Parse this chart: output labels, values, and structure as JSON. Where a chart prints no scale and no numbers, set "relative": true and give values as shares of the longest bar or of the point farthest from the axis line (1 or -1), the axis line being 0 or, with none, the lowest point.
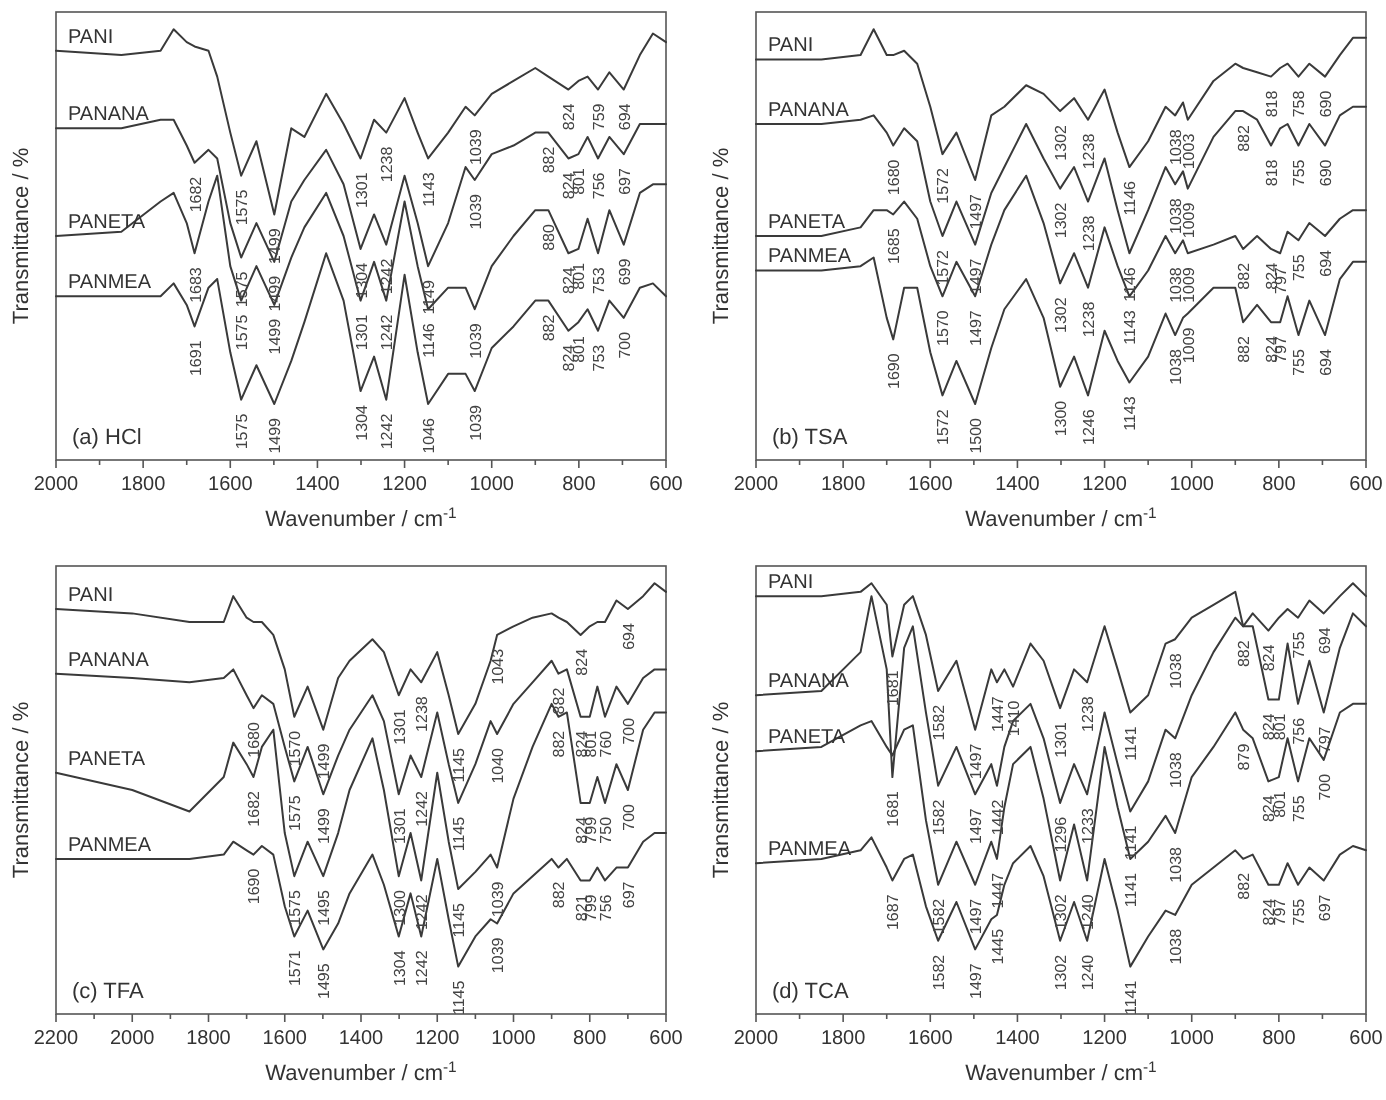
{
  "chart_data": [
    {
      "type": "line",
      "relative": true,
      "title": "(a) HCl",
      "xlabel": "Wavenumber / cm$^{-1}$",
      "ylabel": "Transmittance / %",
      "xlim": [
        2000,
        600
      ],
      "xticks": [
        2000,
        {
          "value": 1900,
          "label": null
        },
        1800,
        {
          "value": 1700,
          "label": null
        },
        1600,
        {
          "value": 1500,
          "label": null
        },
        1400,
        {
          "value": 1300,
          "label": null
        },
        1200,
        {
          "value": 1100,
          "label": null
        },
        1000,
        {
          "value": 900,
          "label": null
        },
        800,
        {
          "value": 700,
          "label": null
        },
        600
      ],
      "x": [
        2000,
        1850,
        1760,
        1730,
        1700,
        1682,
        1650,
        1630,
        1600,
        1575,
        1540,
        1499,
        1460,
        1430,
        1380,
        1340,
        1301,
        1270,
        1242,
        1200,
        1170,
        1146,
        1100,
        1060,
        1039,
        1000,
        950,
        900,
        870,
        824,
        801,
        780,
        756,
        730,
        697,
        660,
        630,
        600
      ],
      "series": [
        {
          "name": "PANI",
          "color": "#3a3a3a",
          "values": [
            0.95,
            0.94,
            0.95,
            1.0,
            0.97,
            0.96,
            0.95,
            0.89,
            0.76,
            0.66,
            0.74,
            0.57,
            0.77,
            0.75,
            0.85,
            0.78,
            0.7,
            0.79,
            0.76,
            0.84,
            0.76,
            0.7,
            0.76,
            0.82,
            0.8,
            0.85,
            0.88,
            0.91,
            0.89,
            0.86,
            0.88,
            0.89,
            0.86,
            0.9,
            0.86,
            0.94,
            0.99,
            0.97
          ]
        },
        {
          "name": "PANANA",
          "color": "#3a3a3a",
          "values": [
            0.77,
            0.77,
            0.79,
            0.79,
            0.73,
            0.69,
            0.72,
            0.7,
            0.55,
            0.47,
            0.55,
            0.46,
            0.6,
            0.65,
            0.72,
            0.64,
            0.49,
            0.57,
            0.5,
            0.66,
            0.55,
            0.45,
            0.55,
            0.68,
            0.65,
            0.71,
            0.73,
            0.76,
            0.76,
            0.7,
            0.71,
            0.75,
            0.7,
            0.75,
            0.71,
            0.78,
            0.78,
            0.78
          ]
        },
        {
          "name": "PANETA",
          "color": "#3a3a3a",
          "values": [
            0.52,
            0.53,
            0.6,
            0.62,
            0.55,
            0.48,
            0.6,
            0.66,
            0.45,
            0.37,
            0.45,
            0.36,
            0.47,
            0.54,
            0.62,
            0.52,
            0.37,
            0.46,
            0.37,
            0.6,
            0.45,
            0.35,
            0.4,
            0.4,
            0.35,
            0.45,
            0.52,
            0.58,
            0.58,
            0.48,
            0.49,
            0.56,
            0.48,
            0.58,
            0.5,
            0.62,
            0.64,
            0.64
          ]
        },
        {
          "name": "PANMEA",
          "color": "#3a3a3a",
          "values": [
            0.38,
            0.38,
            0.38,
            0.41,
            0.36,
            0.31,
            0.4,
            0.42,
            0.25,
            0.14,
            0.22,
            0.13,
            0.23,
            0.32,
            0.48,
            0.37,
            0.16,
            0.24,
            0.14,
            0.43,
            0.25,
            0.13,
            0.2,
            0.2,
            0.16,
            0.26,
            0.31,
            0.37,
            0.37,
            0.3,
            0.32,
            0.35,
            0.3,
            0.37,
            0.33,
            0.4,
            0.41,
            0.38
          ]
        }
      ],
      "annotations": [
        {
          "text": "1575",
          "x": 1575,
          "y": 0.66
        },
        {
          "text": "1499",
          "x": 1499,
          "y": 0.57
        },
        {
          "text": "1301",
          "x": 1301,
          "y": 0.7
        },
        {
          "text": "1238",
          "x": 1242,
          "y": 0.76
        },
        {
          "text": "1143",
          "x": 1146,
          "y": 0.7
        },
        {
          "text": "1039",
          "x": 1039,
          "y": 0.8
        },
        {
          "text": "824",
          "x": 824,
          "y": 0.86
        },
        {
          "text": "759",
          "x": 756,
          "y": 0.86
        },
        {
          "text": "694",
          "x": 697,
          "y": 0.86
        },
        {
          "text": "1682",
          "x": 1682,
          "y": 0.69
        },
        {
          "text": "1575",
          "x": 1575,
          "y": 0.47
        },
        {
          "text": "1499",
          "x": 1499,
          "y": 0.46
        },
        {
          "text": "1304",
          "x": 1301,
          "y": 0.49
        },
        {
          "text": "1242",
          "x": 1242,
          "y": 0.5
        },
        {
          "text": "1149",
          "x": 1146,
          "y": 0.45
        },
        {
          "text": "1039",
          "x": 1039,
          "y": 0.65
        },
        {
          "text": "882",
          "x": 870,
          "y": 0.76
        },
        {
          "text": "824",
          "x": 824,
          "y": 0.7
        },
        {
          "text": "801",
          "x": 801,
          "y": 0.71
        },
        {
          "text": "756",
          "x": 756,
          "y": 0.7
        },
        {
          "text": "697",
          "x": 697,
          "y": 0.71
        },
        {
          "text": "1683",
          "x": 1682,
          "y": 0.48
        },
        {
          "text": "1575",
          "x": 1575,
          "y": 0.37
        },
        {
          "text": "1499",
          "x": 1499,
          "y": 0.36
        },
        {
          "text": "1301",
          "x": 1301,
          "y": 0.37
        },
        {
          "text": "1242",
          "x": 1242,
          "y": 0.37
        },
        {
          "text": "1146",
          "x": 1146,
          "y": 0.35
        },
        {
          "text": "1039",
          "x": 1039,
          "y": 0.35
        },
        {
          "text": "880",
          "x": 870,
          "y": 0.58
        },
        {
          "text": "824",
          "x": 824,
          "y": 0.48
        },
        {
          "text": "801",
          "x": 801,
          "y": 0.49
        },
        {
          "text": "753",
          "x": 756,
          "y": 0.48
        },
        {
          "text": "699",
          "x": 697,
          "y": 0.5
        },
        {
          "text": "1691",
          "x": 1682,
          "y": 0.31
        },
        {
          "text": "882",
          "x": 870,
          "y": 0.37
        },
        {
          "text": "824",
          "x": 824,
          "y": 0.3
        },
        {
          "text": "801",
          "x": 801,
          "y": 0.32
        },
        {
          "text": "753",
          "x": 756,
          "y": 0.3
        },
        {
          "text": "700",
          "x": 697,
          "y": 0.33
        },
        {
          "text": "1575",
          "x": 1575,
          "y": 0.14
        },
        {
          "text": "1499",
          "x": 1499,
          "y": 0.13
        },
        {
          "text": "1304",
          "x": 1301,
          "y": 0.16
        },
        {
          "text": "1242",
          "x": 1242,
          "y": 0.14
        },
        {
          "text": "1046",
          "x": 1146,
          "y": 0.13
        },
        {
          "text": "1039",
          "x": 1039,
          "y": 0.16
        }
      ]
    },
    {
      "type": "line",
      "relative": true,
      "title": "(b) TSA",
      "xlabel": "Wavenumber / cm$^{-1}$",
      "ylabel": "Transmittance / %",
      "xlim": [
        2000,
        600
      ],
      "xticks": [
        2000,
        {
          "value": 1900,
          "label": null
        },
        1800,
        {
          "value": 1700,
          "label": null
        },
        1600,
        {
          "value": 1500,
          "label": null
        },
        1400,
        {
          "value": 1300,
          "label": null
        },
        1200,
        {
          "value": 1100,
          "label": null
        },
        1000,
        {
          "value": 900,
          "label": null
        },
        800,
        {
          "value": 700,
          "label": null
        },
        600
      ],
      "x": [
        2000,
        1850,
        1760,
        1730,
        1700,
        1685,
        1660,
        1630,
        1600,
        1572,
        1540,
        1497,
        1460,
        1430,
        1380,
        1340,
        1302,
        1270,
        1238,
        1200,
        1170,
        1143,
        1100,
        1060,
        1038,
        1020,
        1009,
        950,
        900,
        882,
        850,
        818,
        797,
        780,
        755,
        730,
        694,
        660,
        630,
        600
      ],
      "series": [
        {
          "name": "PANI",
          "color": "#3a3a3a",
          "values": [
            0.93,
            0.93,
            0.94,
            1.0,
            0.94,
            0.94,
            0.95,
            0.92,
            0.82,
            0.71,
            0.76,
            0.65,
            0.8,
            0.82,
            0.87,
            0.85,
            0.81,
            0.84,
            0.79,
            0.86,
            0.76,
            0.68,
            0.74,
            0.82,
            0.8,
            0.83,
            0.79,
            0.88,
            0.92,
            0.91,
            0.9,
            0.89,
            0.91,
            0.92,
            0.89,
            0.92,
            0.89,
            0.94,
            0.98,
            0.98
          ]
        },
        {
          "name": "PANANA",
          "color": "#3a3a3a",
          "values": [
            0.78,
            0.78,
            0.79,
            0.8,
            0.76,
            0.73,
            0.77,
            0.74,
            0.6,
            0.52,
            0.6,
            0.5,
            0.62,
            0.68,
            0.78,
            0.7,
            0.63,
            0.68,
            0.6,
            0.7,
            0.58,
            0.48,
            0.58,
            0.68,
            0.64,
            0.67,
            0.63,
            0.75,
            0.81,
            0.81,
            0.79,
            0.73,
            0.77,
            0.78,
            0.73,
            0.78,
            0.73,
            0.8,
            0.82,
            0.82
          ]
        },
        {
          "name": "PANETA",
          "color": "#3a3a3a",
          "values": [
            0.52,
            0.52,
            0.54,
            0.58,
            0.58,
            0.57,
            0.6,
            0.56,
            0.45,
            0.38,
            0.46,
            0.38,
            0.5,
            0.58,
            0.66,
            0.55,
            0.41,
            0.48,
            0.4,
            0.54,
            0.45,
            0.38,
            0.44,
            0.52,
            0.48,
            0.51,
            0.48,
            0.5,
            0.52,
            0.49,
            0.52,
            0.49,
            0.48,
            0.53,
            0.51,
            0.55,
            0.52,
            0.56,
            0.58,
            0.58
          ]
        },
        {
          "name": "PANMEA",
          "color": "#3a3a3a",
          "values": [
            0.44,
            0.44,
            0.45,
            0.47,
            0.33,
            0.28,
            0.4,
            0.4,
            0.25,
            0.15,
            0.23,
            0.13,
            0.26,
            0.35,
            0.42,
            0.33,
            0.17,
            0.24,
            0.15,
            0.3,
            0.23,
            0.18,
            0.24,
            0.34,
            0.29,
            0.33,
            0.34,
            0.4,
            0.4,
            0.32,
            0.36,
            0.32,
            0.32,
            0.38,
            0.29,
            0.37,
            0.29,
            0.42,
            0.46,
            0.46
          ]
        }
      ],
      "annotations": [
        {
          "text": "1572",
          "x": 1572,
          "y": 0.71
        },
        {
          "text": "1497",
          "x": 1497,
          "y": 0.65
        },
        {
          "text": "1302",
          "x": 1302,
          "y": 0.81
        },
        {
          "text": "1238",
          "x": 1238,
          "y": 0.79
        },
        {
          "text": "1146",
          "x": 1143,
          "y": 0.68
        },
        {
          "text": "1038",
          "x": 1038,
          "y": 0.8
        },
        {
          "text": "1003",
          "x": 1009,
          "y": 0.79
        },
        {
          "text": "818",
          "x": 818,
          "y": 0.89
        },
        {
          "text": "758",
          "x": 755,
          "y": 0.89
        },
        {
          "text": "690",
          "x": 694,
          "y": 0.89
        },
        {
          "text": "1680",
          "x": 1685,
          "y": 0.73
        },
        {
          "text": "1572",
          "x": 1572,
          "y": 0.52
        },
        {
          "text": "1497",
          "x": 1497,
          "y": 0.5
        },
        {
          "text": "1302",
          "x": 1302,
          "y": 0.63
        },
        {
          "text": "1238",
          "x": 1238,
          "y": 0.6
        },
        {
          "text": "1146",
          "x": 1143,
          "y": 0.48
        },
        {
          "text": "1038",
          "x": 1038,
          "y": 0.64
        },
        {
          "text": "1009",
          "x": 1009,
          "y": 0.63
        },
        {
          "text": "882",
          "x": 882,
          "y": 0.81
        },
        {
          "text": "818",
          "x": 818,
          "y": 0.73
        },
        {
          "text": "755",
          "x": 755,
          "y": 0.73
        },
        {
          "text": "690",
          "x": 694,
          "y": 0.73
        },
        {
          "text": "1685",
          "x": 1685,
          "y": 0.57
        },
        {
          "text": "1570",
          "x": 1572,
          "y": 0.38
        },
        {
          "text": "1497",
          "x": 1497,
          "y": 0.38
        },
        {
          "text": "1302",
          "x": 1302,
          "y": 0.41
        },
        {
          "text": "1238",
          "x": 1238,
          "y": 0.4
        },
        {
          "text": "1143",
          "x": 1143,
          "y": 0.38
        },
        {
          "text": "1038",
          "x": 1038,
          "y": 0.48
        },
        {
          "text": "1009",
          "x": 1009,
          "y": 0.48
        },
        {
          "text": "882",
          "x": 882,
          "y": 0.49
        },
        {
          "text": "824",
          "x": 818,
          "y": 0.49
        },
        {
          "text": "797",
          "x": 797,
          "y": 0.48
        },
        {
          "text": "755",
          "x": 755,
          "y": 0.51
        },
        {
          "text": "694",
          "x": 694,
          "y": 0.52
        },
        {
          "text": "1690",
          "x": 1685,
          "y": 0.28
        },
        {
          "text": "1038",
          "x": 1038,
          "y": 0.29
        },
        {
          "text": "1009",
          "x": 1009,
          "y": 0.34
        },
        {
          "text": "882",
          "x": 882,
          "y": 0.32
        },
        {
          "text": "824",
          "x": 818,
          "y": 0.32
        },
        {
          "text": "797",
          "x": 797,
          "y": 0.32
        },
        {
          "text": "755",
          "x": 755,
          "y": 0.29
        },
        {
          "text": "694",
          "x": 694,
          "y": 0.29
        },
        {
          "text": "1572",
          "x": 1572,
          "y": 0.15
        },
        {
          "text": "1500",
          "x": 1497,
          "y": 0.13
        },
        {
          "text": "1300",
          "x": 1302,
          "y": 0.17
        },
        {
          "text": "1246",
          "x": 1238,
          "y": 0.15
        },
        {
          "text": "1143",
          "x": 1143,
          "y": 0.18
        }
      ]
    },
    {
      "type": "line",
      "relative": true,
      "title": "(c) TFA",
      "xlabel": "Wavenumber / cm$^{-1}$",
      "ylabel": "Transmittance / %",
      "xlim": [
        2200,
        600
      ],
      "xticks": [
        2200,
        {
          "value": 2100,
          "label": null
        },
        2000,
        {
          "value": 1900,
          "label": null
        },
        1800,
        {
          "value": 1700,
          "label": null
        },
        1600,
        {
          "value": 1500,
          "label": null
        },
        1400,
        {
          "value": 1300,
          "label": null
        },
        1200,
        {
          "value": 1100,
          "label": null
        },
        1000,
        {
          "value": 900,
          "label": null
        },
        800,
        {
          "value": 700,
          "label": null
        },
        600
      ],
      "x": [
        2200,
        2000,
        1850,
        1760,
        1735,
        1700,
        1682,
        1660,
        1630,
        1600,
        1575,
        1540,
        1499,
        1460,
        1430,
        1370,
        1340,
        1301,
        1270,
        1242,
        1200,
        1170,
        1145,
        1100,
        1060,
        1043,
        1000,
        950,
        900,
        882,
        860,
        824,
        800,
        780,
        760,
        730,
        700,
        660,
        630,
        600
      ],
      "series": [
        {
          "name": "PANI",
          "color": "#3a3a3a",
          "values": [
            0.94,
            0.93,
            0.91,
            0.91,
            0.97,
            0.92,
            0.91,
            0.91,
            0.88,
            0.8,
            0.69,
            0.76,
            0.66,
            0.78,
            0.82,
            0.87,
            0.84,
            0.74,
            0.8,
            0.77,
            0.84,
            0.74,
            0.65,
            0.72,
            0.82,
            0.88,
            0.9,
            0.92,
            0.93,
            0.92,
            0.91,
            0.88,
            0.9,
            0.91,
            0.91,
            0.96,
            0.94,
            0.97,
            1.0,
            0.98
          ]
        },
        {
          "name": "PANANA",
          "color": "#3a3a3a",
          "values": [
            0.79,
            0.78,
            0.77,
            0.78,
            0.8,
            0.74,
            0.71,
            0.74,
            0.72,
            0.62,
            0.54,
            0.62,
            0.51,
            0.6,
            0.66,
            0.74,
            0.68,
            0.51,
            0.6,
            0.55,
            0.7,
            0.58,
            0.49,
            0.58,
            0.68,
            0.65,
            0.72,
            0.77,
            0.82,
            0.79,
            0.8,
            0.69,
            0.69,
            0.76,
            0.69,
            0.76,
            0.72,
            0.78,
            0.8,
            0.8
          ]
        },
        {
          "name": "PANETA",
          "color": "#3a3a3a",
          "values": [
            0.56,
            0.52,
            0.47,
            0.55,
            0.63,
            0.58,
            0.55,
            0.62,
            0.66,
            0.42,
            0.32,
            0.4,
            0.32,
            0.42,
            0.52,
            0.64,
            0.52,
            0.32,
            0.42,
            0.31,
            0.56,
            0.4,
            0.29,
            0.33,
            0.37,
            0.34,
            0.5,
            0.62,
            0.72,
            0.69,
            0.7,
            0.49,
            0.49,
            0.55,
            0.49,
            0.58,
            0.52,
            0.66,
            0.7,
            0.7
          ]
        },
        {
          "name": "PANMEA",
          "color": "#3a3a3a",
          "values": [
            0.36,
            0.36,
            0.36,
            0.37,
            0.4,
            0.38,
            0.37,
            0.39,
            0.37,
            0.25,
            0.18,
            0.24,
            0.15,
            0.21,
            0.28,
            0.37,
            0.3,
            0.18,
            0.28,
            0.18,
            0.36,
            0.22,
            0.11,
            0.18,
            0.22,
            0.21,
            0.28,
            0.32,
            0.36,
            0.34,
            0.36,
            0.31,
            0.31,
            0.34,
            0.31,
            0.34,
            0.34,
            0.4,
            0.42,
            0.42
          ]
        }
      ],
      "annotations": [
        {
          "text": "1570",
          "x": 1575,
          "y": 0.69
        },
        {
          "text": "1499",
          "x": 1499,
          "y": 0.66
        },
        {
          "text": "1301",
          "x": 1301,
          "y": 0.74
        },
        {
          "text": "1238",
          "x": 1242,
          "y": 0.77
        },
        {
          "text": "1145",
          "x": 1145,
          "y": 0.65
        },
        {
          "text": "1043",
          "x": 1043,
          "y": 0.88
        },
        {
          "text": "824",
          "x": 824,
          "y": 0.88
        },
        {
          "text": "694",
          "x": 700,
          "y": 0.94
        },
        {
          "text": "1680",
          "x": 1682,
          "y": 0.71
        },
        {
          "text": "1575",
          "x": 1575,
          "y": 0.54
        },
        {
          "text": "1499",
          "x": 1499,
          "y": 0.51
        },
        {
          "text": "1301",
          "x": 1301,
          "y": 0.51
        },
        {
          "text": "1242",
          "x": 1242,
          "y": 0.55
        },
        {
          "text": "1145",
          "x": 1145,
          "y": 0.49
        },
        {
          "text": "1040",
          "x": 1043,
          "y": 0.65
        },
        {
          "text": "882",
          "x": 882,
          "y": 0.79
        },
        {
          "text": "824",
          "x": 824,
          "y": 0.69
        },
        {
          "text": "801",
          "x": 800,
          "y": 0.69
        },
        {
          "text": "760",
          "x": 760,
          "y": 0.69
        },
        {
          "text": "700",
          "x": 700,
          "y": 0.72
        },
        {
          "text": "1682",
          "x": 1682,
          "y": 0.55
        },
        {
          "text": "1575",
          "x": 1575,
          "y": 0.32
        },
        {
          "text": "1495",
          "x": 1499,
          "y": 0.32
        },
        {
          "text": "1300",
          "x": 1301,
          "y": 0.32
        },
        {
          "text": "1242",
          "x": 1242,
          "y": 0.31
        },
        {
          "text": "1145",
          "x": 1145,
          "y": 0.29
        },
        {
          "text": "1039",
          "x": 1043,
          "y": 0.34
        },
        {
          "text": "882",
          "x": 882,
          "y": 0.69
        },
        {
          "text": "824",
          "x": 824,
          "y": 0.49
        },
        {
          "text": "799",
          "x": 800,
          "y": 0.49
        },
        {
          "text": "750",
          "x": 760,
          "y": 0.49
        },
        {
          "text": "700",
          "x": 700,
          "y": 0.52
        },
        {
          "text": "1690",
          "x": 1682,
          "y": 0.37
        },
        {
          "text": "882",
          "x": 882,
          "y": 0.34
        },
        {
          "text": "821",
          "x": 824,
          "y": 0.31
        },
        {
          "text": "799",
          "x": 800,
          "y": 0.31
        },
        {
          "text": "756",
          "x": 760,
          "y": 0.31
        },
        {
          "text": "697",
          "x": 700,
          "y": 0.34
        },
        {
          "text": "1571",
          "x": 1575,
          "y": 0.18
        },
        {
          "text": "1495",
          "x": 1499,
          "y": 0.15
        },
        {
          "text": "1304",
          "x": 1301,
          "y": 0.18
        },
        {
          "text": "1242",
          "x": 1242,
          "y": 0.18
        },
        {
          "text": "1145",
          "x": 1145,
          "y": 0.11
        },
        {
          "text": "1039",
          "x": 1043,
          "y": 0.21
        }
      ]
    },
    {
      "type": "line",
      "relative": true,
      "title": "(d) TCA",
      "xlabel": "Wavenumber / cm$^{-1}$",
      "ylabel": "Transmittance / %",
      "xlim": [
        2000,
        600
      ],
      "xticks": [
        2000,
        {
          "value": 1900,
          "label": null
        },
        1800,
        {
          "value": 1700,
          "label": null
        },
        1600,
        {
          "value": 1500,
          "label": null
        },
        1400,
        {
          "value": 1300,
          "label": null
        },
        1200,
        {
          "value": 1100,
          "label": null
        },
        1000,
        {
          "value": 900,
          "label": null
        },
        800,
        {
          "value": 700,
          "label": null
        },
        600
      ],
      "x": [
        2000,
        1850,
        1760,
        1735,
        1700,
        1687,
        1660,
        1640,
        1610,
        1582,
        1540,
        1497,
        1460,
        1447,
        1430,
        1410,
        1370,
        1340,
        1302,
        1270,
        1240,
        1200,
        1170,
        1141,
        1100,
        1060,
        1038,
        1000,
        950,
        900,
        882,
        860,
        824,
        800,
        780,
        756,
        730,
        697,
        660,
        630,
        600
      ],
      "series": [
        {
          "name": "PANI",
          "color": "#3a3a3a",
          "values": [
            0.97,
            0.97,
            0.98,
            1.0,
            0.95,
            0.83,
            0.95,
            0.97,
            0.88,
            0.75,
            0.82,
            0.66,
            0.8,
            0.77,
            0.8,
            0.76,
            0.86,
            0.82,
            0.71,
            0.8,
            0.77,
            0.9,
            0.8,
            0.7,
            0.74,
            0.86,
            0.87,
            0.92,
            0.95,
            0.98,
            0.9,
            0.93,
            0.89,
            0.92,
            0.94,
            0.92,
            0.96,
            0.93,
            0.97,
            1.0,
            0.97
          ]
        },
        {
          "name": "PANANA",
          "color": "#3a3a3a",
          "values": [
            0.74,
            0.75,
            0.84,
            0.97,
            0.8,
            0.55,
            0.85,
            0.9,
            0.7,
            0.53,
            0.62,
            0.51,
            0.58,
            0.53,
            0.62,
            0.68,
            0.72,
            0.64,
            0.49,
            0.58,
            0.51,
            0.7,
            0.58,
            0.47,
            0.54,
            0.66,
            0.64,
            0.74,
            0.84,
            0.92,
            0.9,
            0.9,
            0.73,
            0.73,
            0.86,
            0.72,
            0.82,
            0.7,
            0.85,
            0.93,
            0.9
          ]
        },
        {
          "name": "PANETA",
          "color": "#3a3a3a",
          "values": [
            0.61,
            0.62,
            0.67,
            0.68,
            0.62,
            0.6,
            0.66,
            0.67,
            0.45,
            0.3,
            0.4,
            0.3,
            0.4,
            0.36,
            0.48,
            0.58,
            0.62,
            0.5,
            0.31,
            0.44,
            0.31,
            0.62,
            0.48,
            0.36,
            0.4,
            0.46,
            0.42,
            0.55,
            0.62,
            0.7,
            0.66,
            0.64,
            0.54,
            0.55,
            0.64,
            0.54,
            0.64,
            0.59,
            0.7,
            0.72,
            0.72
          ]
        },
        {
          "name": "PANMEA",
          "color": "#3a3a3a",
          "values": [
            0.35,
            0.36,
            0.38,
            0.41,
            0.34,
            0.31,
            0.36,
            0.37,
            0.25,
            0.17,
            0.26,
            0.15,
            0.22,
            0.23,
            0.3,
            0.35,
            0.39,
            0.32,
            0.17,
            0.26,
            0.17,
            0.36,
            0.24,
            0.11,
            0.18,
            0.24,
            0.23,
            0.3,
            0.34,
            0.38,
            0.36,
            0.37,
            0.3,
            0.3,
            0.35,
            0.3,
            0.34,
            0.31,
            0.37,
            0.39,
            0.38
          ]
        }
      ],
      "annotations": [
        {
          "text": "1681",
          "x": 1687,
          "y": 0.83
        },
        {
          "text": "1582",
          "x": 1582,
          "y": 0.75
        },
        {
          "text": "1497",
          "x": 1497,
          "y": 0.66
        },
        {
          "text": "1447",
          "x": 1447,
          "y": 0.77
        },
        {
          "text": "1410",
          "x": 1410,
          "y": 0.76
        },
        {
          "text": "1301",
          "x": 1302,
          "y": 0.71
        },
        {
          "text": "1238",
          "x": 1240,
          "y": 0.77
        },
        {
          "text": "1141",
          "x": 1141,
          "y": 0.7
        },
        {
          "text": "1038",
          "x": 1038,
          "y": 0.87
        },
        {
          "text": "882",
          "x": 882,
          "y": 0.9
        },
        {
          "text": "824",
          "x": 824,
          "y": 0.89
        },
        {
          "text": "755",
          "x": 756,
          "y": 0.92
        },
        {
          "text": "694",
          "x": 697,
          "y": 0.93
        },
        {
          "text": "824",
          "x": 824,
          "y": 0.73
        },
        {
          "text": "801",
          "x": 800,
          "y": 0.73
        },
        {
          "text": "756",
          "x": 756,
          "y": 0.72
        },
        {
          "text": "797",
          "x": 697,
          "y": 0.7
        },
        {
          "text": "1681",
          "x": 1687,
          "y": 0.55
        },
        {
          "text": "1582",
          "x": 1582,
          "y": 0.53
        },
        {
          "text": "1497",
          "x": 1497,
          "y": 0.51
        },
        {
          "text": "1442",
          "x": 1447,
          "y": 0.53
        },
        {
          "text": "1296",
          "x": 1302,
          "y": 0.49
        },
        {
          "text": "1233",
          "x": 1240,
          "y": 0.51
        },
        {
          "text": "1141",
          "x": 1141,
          "y": 0.47
        },
        {
          "text": "1038",
          "x": 1038,
          "y": 0.64
        },
        {
          "text": "879",
          "x": 882,
          "y": 0.66
        },
        {
          "text": "824",
          "x": 824,
          "y": 0.54
        },
        {
          "text": "801",
          "x": 800,
          "y": 0.55
        },
        {
          "text": "755",
          "x": 756,
          "y": 0.54
        },
        {
          "text": "700",
          "x": 697,
          "y": 0.59
        },
        {
          "text": "1582",
          "x": 1582,
          "y": 0.3
        },
        {
          "text": "1497",
          "x": 1497,
          "y": 0.3
        },
        {
          "text": "1447",
          "x": 1447,
          "y": 0.36
        },
        {
          "text": "1302",
          "x": 1302,
          "y": 0.31
        },
        {
          "text": "1240",
          "x": 1240,
          "y": 0.31
        },
        {
          "text": "1141",
          "x": 1141,
          "y": 0.36
        },
        {
          "text": "1038",
          "x": 1038,
          "y": 0.42
        },
        {
          "text": "1687",
          "x": 1687,
          "y": 0.31
        },
        {
          "text": "882",
          "x": 882,
          "y": 0.36
        },
        {
          "text": "824",
          "x": 824,
          "y": 0.3
        },
        {
          "text": "797",
          "x": 800,
          "y": 0.3
        },
        {
          "text": "755",
          "x": 756,
          "y": 0.3
        },
        {
          "text": "697",
          "x": 697,
          "y": 0.31
        },
        {
          "text": "1582",
          "x": 1582,
          "y": 0.17
        },
        {
          "text": "1497",
          "x": 1497,
          "y": 0.15
        },
        {
          "text": "1445",
          "x": 1447,
          "y": 0.23
        },
        {
          "text": "1302",
          "x": 1302,
          "y": 0.17
        },
        {
          "text": "1240",
          "x": 1240,
          "y": 0.17
        },
        {
          "text": "1141",
          "x": 1141,
          "y": 0.11
        },
        {
          "text": "1038",
          "x": 1038,
          "y": 0.23
        }
      ]
    }
  ]
}
